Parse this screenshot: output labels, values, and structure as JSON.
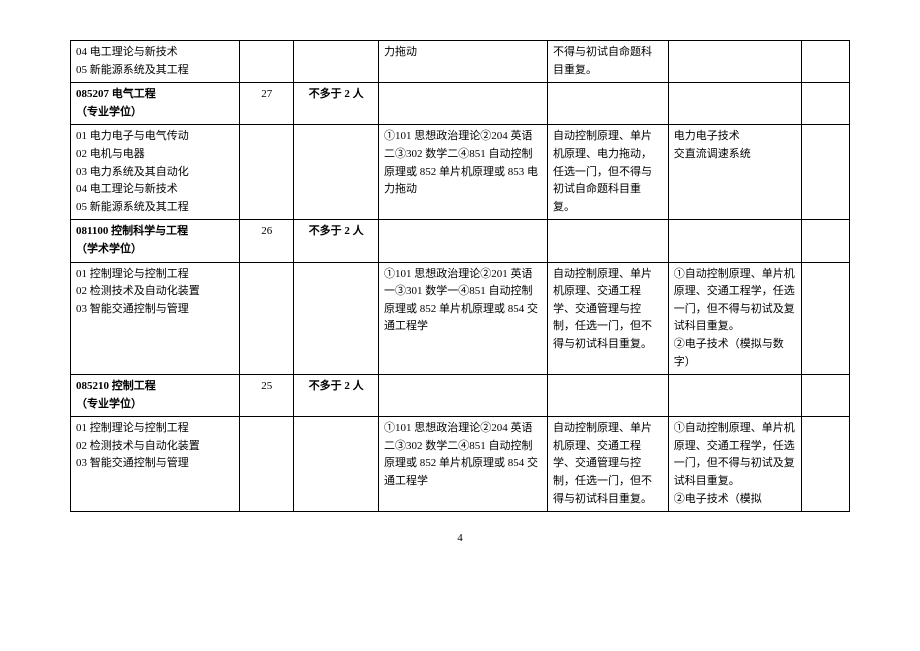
{
  "rows": [
    {
      "c1": "04 电工理论与新技术\n05 新能源系统及其工程",
      "c2": "",
      "c3": "",
      "c4": "力拖动",
      "c5": "不得与初试自命题科目重复。",
      "c6": "",
      "c7": ""
    },
    {
      "c1": "085207 电气工程\n（专业学位）",
      "c1_bold": true,
      "c2": "27",
      "c3": "不多于 2 人",
      "c3_bold": true,
      "c4": "",
      "c5": "",
      "c6": "",
      "c7": ""
    },
    {
      "c1": "01 电力电子与电气传动\n02 电机与电器\n03 电力系统及其自动化\n04 电工理论与新技术\n05 新能源系统及其工程",
      "c2": "",
      "c3": "",
      "c4": "①101 思想政治理论②204 英语二③302 数学二④851 自动控制原理或 852 单片机原理或 853 电力拖动",
      "c5": "自动控制原理、单片机原理、电力拖动，任选一门，但不得与初试自命题科目重复。",
      "c6": "电力电子技术\n交直流调速系统",
      "c7": ""
    },
    {
      "c1": "081100 控制科学与工程\n（学术学位）",
      "c1_bold": true,
      "c2": "26",
      "c3": "不多于 2 人",
      "c3_bold": true,
      "c4": "",
      "c5": "",
      "c6": "",
      "c7": ""
    },
    {
      "c1": "01 控制理论与控制工程\n02 检测技术及自动化装置\n03 智能交通控制与管理",
      "c2": "",
      "c3": "",
      "c4": "①101 思想政治理论②201 英语一③301 数学一④851 自动控制原理或 852 单片机原理或 854 交通工程学",
      "c5": "自动控制原理、单片机原理、交通工程学、交通管理与控制，任选一门，但不得与初试科目重复。",
      "c6": "①自动控制原理、单片机原理、交通工程学，任选一门，但不得与初试及复试科目重复。\n②电子技术（模拟与数字）",
      "c7": ""
    },
    {
      "c1": "085210  控制工程\n（专业学位）",
      "c1_bold": true,
      "c2": "25",
      "c3": "不多于 2 人",
      "c3_bold": true,
      "c4": "",
      "c5": "",
      "c6": "",
      "c7": ""
    },
    {
      "c1": "01 控制理论与控制工程\n02 检测技术与自动化装置\n03 智能交通控制与管理",
      "c2": "",
      "c3": "",
      "c4": "①101 思想政治理论②204 英语二③302 数学二④851 自动控制原理或 852 单片机原理或 854 交通工程学",
      "c5": "自动控制原理、单片机原理、交通工程学、交通管理与控制，任选一门，但不得与初试科目重复。",
      "c6": "①自动控制原理、单片机原理、交通工程学，任选一门，但不得与初试及复试科目重复。\n②电子技术（模拟",
      "c7": ""
    }
  ],
  "page_number": "4"
}
